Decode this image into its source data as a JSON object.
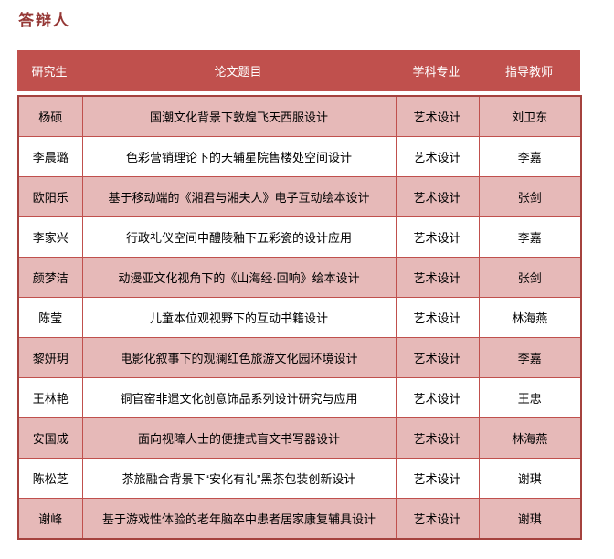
{
  "page": {
    "title": "答辩人"
  },
  "colors": {
    "title_text": "#953735",
    "header_bg": "#c0504d",
    "header_text": "#ffffff",
    "row_alt_bg": "#e6b9b8",
    "row_bg": "#ffffff",
    "border": "#c0504d",
    "outer_border": "#a5423e"
  },
  "table": {
    "headers": [
      "研究生",
      "论文题目",
      "学科专业",
      "指导教师"
    ],
    "rows": [
      {
        "student": "杨硕",
        "thesis_title": "国潮文化背景下敦煌飞天西服设计",
        "major": "艺术设计",
        "advisor": "刘卫东"
      },
      {
        "student": "李晨璐",
        "thesis_title": "色彩营销理论下的天辅星院售楼处空间设计",
        "major": "艺术设计",
        "advisor": "李嘉"
      },
      {
        "student": "欧阳乐",
        "thesis_title": "基于移动端的《湘君与湘夫人》电子互动绘本设计",
        "major": "艺术设计",
        "advisor": "张剑"
      },
      {
        "student": "李家兴",
        "thesis_title": "行政礼仪空间中醴陵釉下五彩瓷的设计应用",
        "major": "艺术设计",
        "advisor": "李嘉"
      },
      {
        "student": "颜梦洁",
        "thesis_title": "动漫亚文化视角下的《山海经·回响》绘本设计",
        "major": "艺术设计",
        "advisor": "张剑"
      },
      {
        "student": "陈莹",
        "thesis_title": "儿童本位观视野下的互动书籍设计",
        "major": "艺术设计",
        "advisor": "林海燕"
      },
      {
        "student": "黎妍玥",
        "thesis_title": "电影化叙事下的观澜红色旅游文化园环境设计",
        "major": "艺术设计",
        "advisor": "李嘉"
      },
      {
        "student": "王林艳",
        "thesis_title": "铜官窑非遗文化创意饰品系列设计研究与应用",
        "major": "艺术设计",
        "advisor": "王忠"
      },
      {
        "student": "安国成",
        "thesis_title": "面向视障人士的便捷式盲文书写器设计",
        "major": "艺术设计",
        "advisor": "林海燕"
      },
      {
        "student": "陈松芝",
        "thesis_title": "茶旅融合背景下“安化有礼”黑茶包装创新设计",
        "major": "艺术设计",
        "advisor": "谢琪"
      },
      {
        "student": "谢峰",
        "thesis_title": "基于游戏性体验的老年脑卒中患者居家康复辅具设计",
        "major": "艺术设计",
        "advisor": "谢琪"
      }
    ]
  }
}
